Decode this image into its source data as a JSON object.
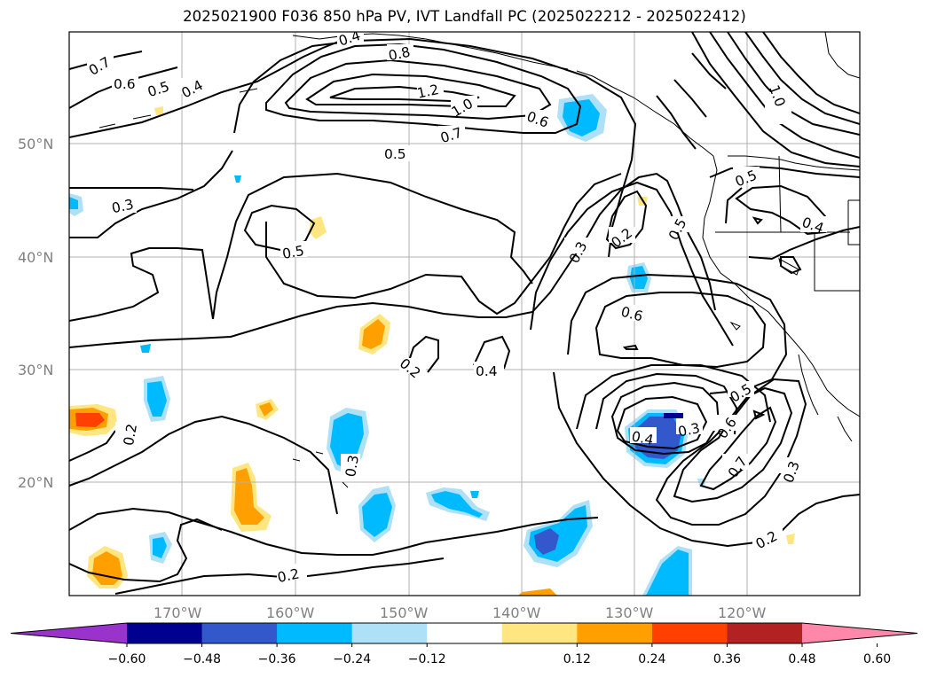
{
  "title": "2025021900 F036 850 hPa PV, IVT Landfall PC (2025022212 - 2025022412)",
  "map": {
    "lat_labels": [
      "50°N",
      "40°N",
      "30°N",
      "20°N"
    ],
    "lon_labels": [
      "170°W",
      "160°W",
      "150°W",
      "140°W",
      "130°W",
      "120°W"
    ],
    "contour_labels": [
      "0.4",
      "0.8",
      "0.7",
      "0.6",
      "0.5",
      "0.4",
      "1.2",
      "1.0",
      "0.7",
      "0.6",
      "0.5",
      "0.3",
      "0.5",
      "0.2",
      "0.3",
      "0.5",
      "0.6",
      "0.2",
      "0.4",
      "0.4",
      "0.3",
      "0.5",
      "0.6",
      "0.7",
      "0.3",
      "0.2",
      "0.2",
      "0.3",
      "0.2",
      "1.0",
      "0.5",
      "0.4"
    ]
  },
  "colorbar": {
    "ticks": [
      "−0.60",
      "−0.48",
      "−0.36",
      "−0.24",
      "−0.12",
      "0.12",
      "0.24",
      "0.36",
      "0.48",
      "0.60"
    ],
    "colors": [
      "#9933cc",
      "#000090",
      "#3358cc",
      "#00baff",
      "#aee0f8",
      "#ffffff",
      "#ffe680",
      "#ffa000",
      "#ff4000",
      "#b22222",
      "#ff88aa"
    ]
  }
}
